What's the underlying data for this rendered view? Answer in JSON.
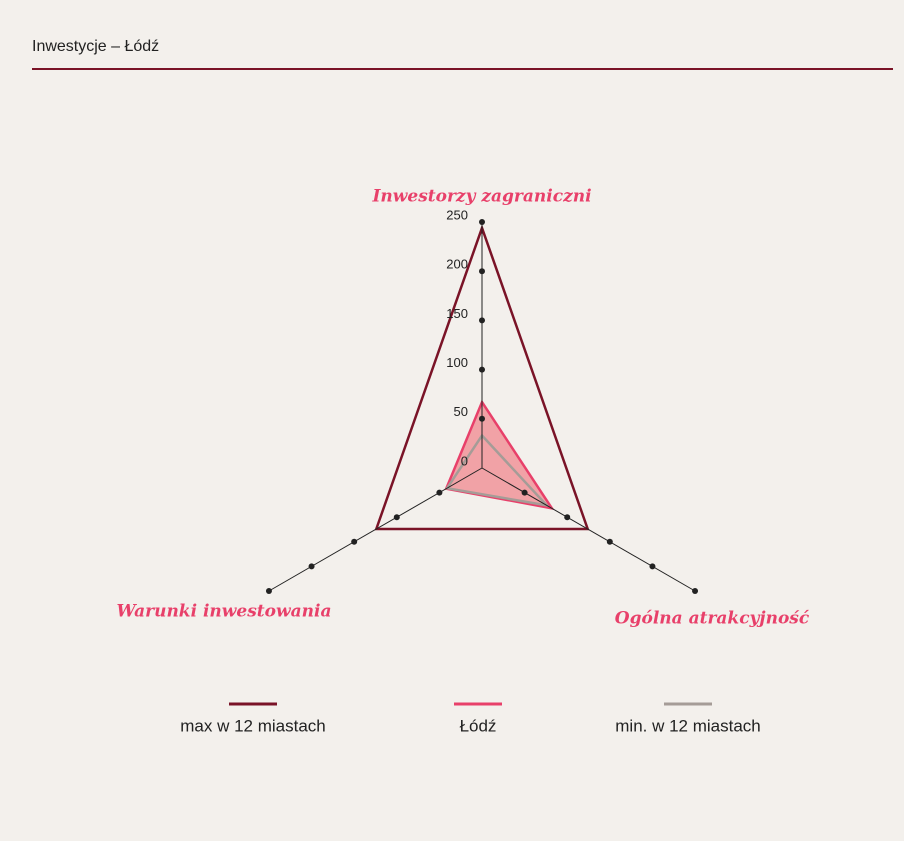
{
  "chart_data": {
    "type": "radar",
    "title": "Inwestycje – Łódź",
    "categories": [
      "Inwestorzy zagraniczni",
      "Ogólna atrakcyjność",
      "Warunki inwestowania"
    ],
    "series": [
      {
        "name": "max w 12 miastach",
        "color": "#7a1327",
        "values": [
          244,
          124,
          124
        ]
      },
      {
        "name": "Łódź",
        "color": "#e8406a",
        "values": [
          67,
          82,
          42
        ]
      },
      {
        "name": "min. w 12 miastach",
        "color": "#a59c97",
        "values": [
          33,
          76,
          41
        ]
      }
    ],
    "rlim": [
      0,
      250
    ],
    "rticks": [
      0,
      50,
      100,
      150,
      200,
      250
    ]
  }
}
